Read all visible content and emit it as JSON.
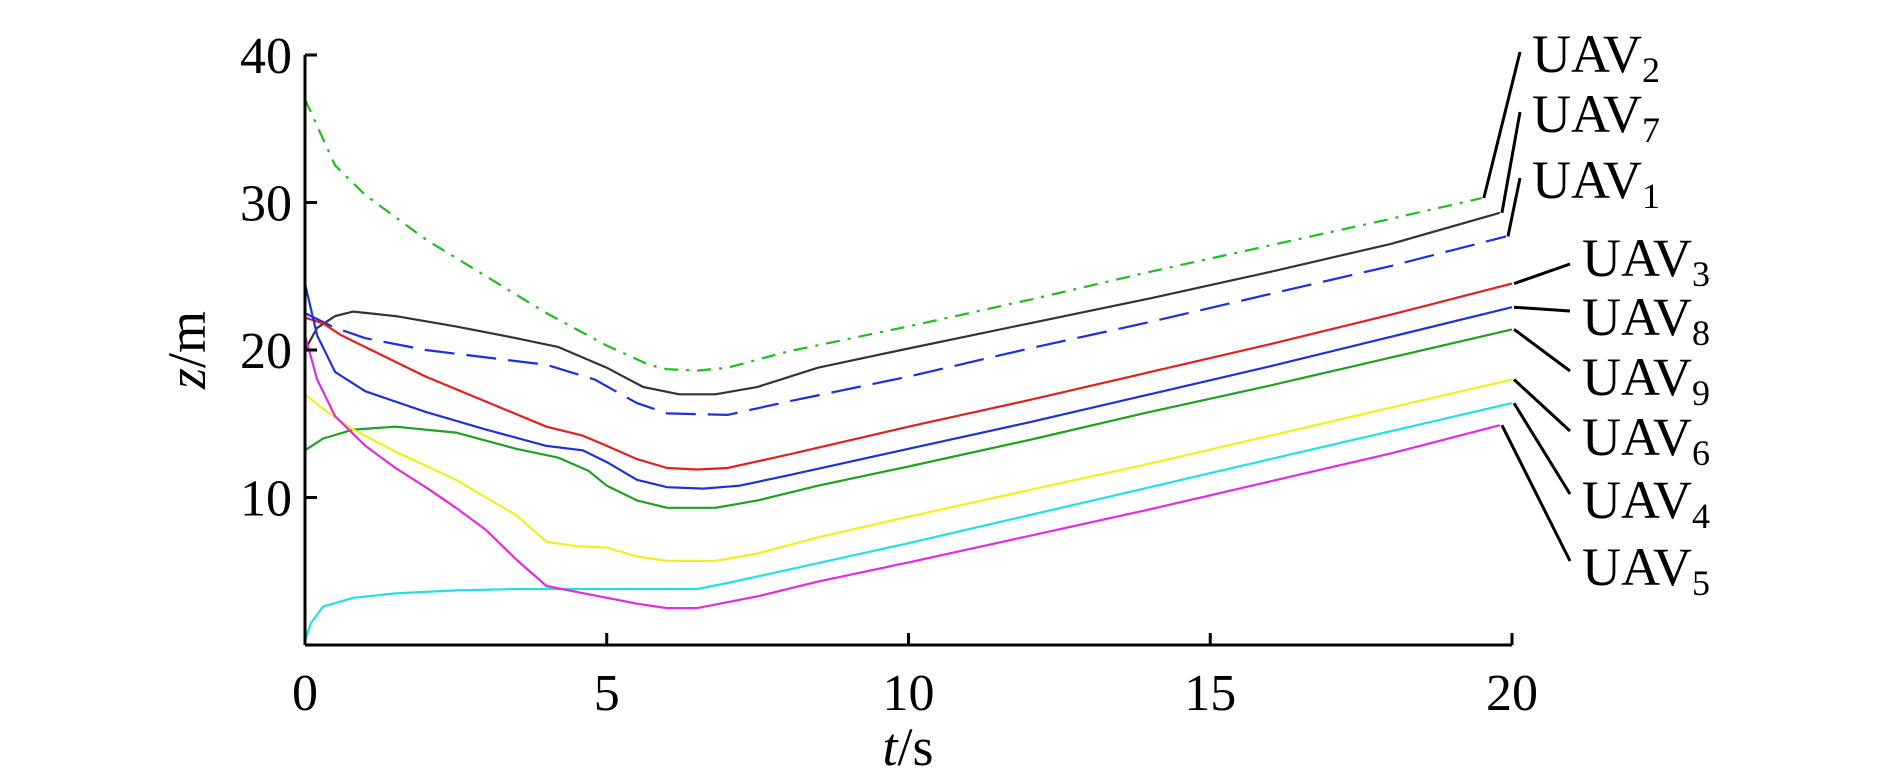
{
  "chart_data": {
    "type": "line",
    "xlabel": {
      "italic": "t",
      "rest": "/s"
    },
    "ylabel": {
      "italic": "z",
      "rest": "/m"
    },
    "xlim": [
      0,
      20
    ],
    "ylim": [
      0,
      40
    ],
    "xticks": [
      0,
      5,
      10,
      15,
      20
    ],
    "yticks": [
      10,
      20,
      30,
      40
    ],
    "xtick_labels": [
      "0",
      "5",
      "10",
      "15",
      "20"
    ],
    "ytick_labels": [
      "10",
      "20",
      "30",
      "40"
    ],
    "grid": false,
    "legend_placement": "right, leader lines to line ends",
    "series": [
      {
        "name": "UAV",
        "sub": "2",
        "color": "#22bb22",
        "dash": "14 8 3 8",
        "points": [
          [
            0,
            37
          ],
          [
            0.5,
            32.5
          ],
          [
            1,
            30.5
          ],
          [
            2,
            27.5
          ],
          [
            3,
            25
          ],
          [
            4,
            22.5
          ],
          [
            5,
            20.3
          ],
          [
            5.7,
            19
          ],
          [
            6,
            18.7
          ],
          [
            6.5,
            18.6
          ],
          [
            7,
            18.8
          ],
          [
            8,
            19.9
          ],
          [
            10,
            21.6
          ],
          [
            12,
            23.4
          ],
          [
            14,
            25.3
          ],
          [
            16,
            27.1
          ],
          [
            18,
            28.9
          ],
          [
            19.5,
            30.3
          ]
        ]
      },
      {
        "name": "UAV",
        "sub": "7",
        "color": "#333333",
        "dash": "",
        "points": [
          [
            0,
            20
          ],
          [
            0.2,
            21.5
          ],
          [
            0.5,
            22.3
          ],
          [
            0.8,
            22.6
          ],
          [
            1.5,
            22.3
          ],
          [
            2.5,
            21.6
          ],
          [
            3.5,
            20.8
          ],
          [
            4.2,
            20.2
          ],
          [
            5,
            18.8
          ],
          [
            5.6,
            17.5
          ],
          [
            6.2,
            17
          ],
          [
            6.8,
            17
          ],
          [
            7.5,
            17.5
          ],
          [
            8.5,
            18.8
          ],
          [
            10,
            20.1
          ],
          [
            12,
            21.8
          ],
          [
            14,
            23.5
          ],
          [
            16,
            25.3
          ],
          [
            18,
            27.2
          ],
          [
            19.8,
            29.3
          ]
        ]
      },
      {
        "name": "UAV",
        "sub": "1",
        "color": "#1e2ee0",
        "dash": "30 12",
        "points": [
          [
            0,
            22.5
          ],
          [
            0.5,
            21.5
          ],
          [
            1,
            20.8
          ],
          [
            2,
            20
          ],
          [
            3,
            19.5
          ],
          [
            4,
            19
          ],
          [
            4.8,
            18
          ],
          [
            5.5,
            16.4
          ],
          [
            6,
            15.7
          ],
          [
            7,
            15.6
          ],
          [
            8,
            16.5
          ],
          [
            10,
            18.2
          ],
          [
            12,
            20.1
          ],
          [
            14,
            21.9
          ],
          [
            16,
            23.8
          ],
          [
            18,
            25.7
          ],
          [
            19.9,
            27.7
          ]
        ]
      },
      {
        "name": "UAV",
        "sub": "3",
        "color": "#e02020",
        "dash": "",
        "points": [
          [
            0,
            22.2
          ],
          [
            0.3,
            21.8
          ],
          [
            0.6,
            21
          ],
          [
            1,
            20.2
          ],
          [
            2,
            18.2
          ],
          [
            3,
            16.5
          ],
          [
            4,
            14.8
          ],
          [
            4.6,
            14.2
          ],
          [
            5,
            13.5
          ],
          [
            5.5,
            12.6
          ],
          [
            6,
            12
          ],
          [
            6.5,
            11.9
          ],
          [
            7,
            12
          ],
          [
            8,
            12.9
          ],
          [
            10,
            14.8
          ],
          [
            12,
            16.6
          ],
          [
            14,
            18.5
          ],
          [
            16,
            20.4
          ],
          [
            18,
            22.4
          ],
          [
            20,
            24.5
          ]
        ]
      },
      {
        "name": "UAV",
        "sub": "8",
        "color": "#2030d8",
        "dash": "",
        "points": [
          [
            0,
            24.5
          ],
          [
            0.2,
            21
          ],
          [
            0.5,
            18.5
          ],
          [
            1,
            17.2
          ],
          [
            2,
            15.8
          ],
          [
            3,
            14.6
          ],
          [
            4,
            13.5
          ],
          [
            4.6,
            13.2
          ],
          [
            5,
            12.4
          ],
          [
            5.5,
            11.2
          ],
          [
            6,
            10.7
          ],
          [
            6.6,
            10.6
          ],
          [
            7.2,
            10.8
          ],
          [
            8,
            11.5
          ],
          [
            10,
            13.3
          ],
          [
            12,
            15.1
          ],
          [
            14,
            17
          ],
          [
            16,
            18.9
          ],
          [
            18,
            20.9
          ],
          [
            20,
            22.9
          ]
        ]
      },
      {
        "name": "UAV",
        "sub": "9",
        "color": "#20a020",
        "dash": "",
        "points": [
          [
            0,
            13.2
          ],
          [
            0.3,
            14
          ],
          [
            0.8,
            14.6
          ],
          [
            1.5,
            14.8
          ],
          [
            2.5,
            14.4
          ],
          [
            3.5,
            13.3
          ],
          [
            4.2,
            12.7
          ],
          [
            4.7,
            11.8
          ],
          [
            5,
            10.8
          ],
          [
            5.5,
            9.8
          ],
          [
            6,
            9.3
          ],
          [
            6.8,
            9.3
          ],
          [
            7.5,
            9.8
          ],
          [
            8.5,
            10.8
          ],
          [
            10,
            12.1
          ],
          [
            12,
            13.9
          ],
          [
            14,
            15.8
          ],
          [
            16,
            17.6
          ],
          [
            18,
            19.5
          ],
          [
            20,
            21.4
          ]
        ]
      },
      {
        "name": "UAV",
        "sub": "6",
        "color": "#f0f020",
        "dash": "",
        "points": [
          [
            0,
            17
          ],
          [
            0.3,
            16
          ],
          [
            0.8,
            14.6
          ],
          [
            1.5,
            13.1
          ],
          [
            2.5,
            11.2
          ],
          [
            3.5,
            8.8
          ],
          [
            4,
            7
          ],
          [
            4.5,
            6.7
          ],
          [
            5,
            6.6
          ],
          [
            5.5,
            6
          ],
          [
            6,
            5.7
          ],
          [
            6.8,
            5.7
          ],
          [
            7.5,
            6.2
          ],
          [
            8.5,
            7.3
          ],
          [
            10,
            8.7
          ],
          [
            12,
            10.5
          ],
          [
            14,
            12.3
          ],
          [
            16,
            14.2
          ],
          [
            18,
            16.1
          ],
          [
            20,
            18
          ]
        ]
      },
      {
        "name": "UAV",
        "sub": "4",
        "color": "#22e0e0",
        "dash": "",
        "points": [
          [
            0,
            0.3
          ],
          [
            0.1,
            1.5
          ],
          [
            0.3,
            2.6
          ],
          [
            0.8,
            3.2
          ],
          [
            1.5,
            3.5
          ],
          [
            2.5,
            3.7
          ],
          [
            3.5,
            3.8
          ],
          [
            4.5,
            3.8
          ],
          [
            5.5,
            3.8
          ],
          [
            6.5,
            3.8
          ],
          [
            7,
            4.2
          ],
          [
            8,
            5.1
          ],
          [
            10,
            6.9
          ],
          [
            12,
            8.8
          ],
          [
            14,
            10.7
          ],
          [
            16,
            12.6
          ],
          [
            18,
            14.5
          ],
          [
            20,
            16.4
          ]
        ]
      },
      {
        "name": "UAV",
        "sub": "5",
        "color": "#e02ce0",
        "dash": "",
        "points": [
          [
            0,
            21
          ],
          [
            0.2,
            18
          ],
          [
            0.5,
            15.5
          ],
          [
            1,
            13.5
          ],
          [
            1.5,
            12
          ],
          [
            2,
            10.7
          ],
          [
            2.5,
            9.3
          ],
          [
            3,
            7.8
          ],
          [
            3.5,
            5.8
          ],
          [
            4,
            4
          ],
          [
            4.5,
            3.6
          ],
          [
            5,
            3.2
          ],
          [
            5.5,
            2.8
          ],
          [
            6,
            2.5
          ],
          [
            6.5,
            2.5
          ],
          [
            7.5,
            3.3
          ],
          [
            8.5,
            4.3
          ],
          [
            10,
            5.6
          ],
          [
            12,
            7.4
          ],
          [
            14,
            9.2
          ],
          [
            16,
            11.1
          ],
          [
            18,
            13
          ],
          [
            19.8,
            14.9
          ]
        ]
      }
    ]
  }
}
